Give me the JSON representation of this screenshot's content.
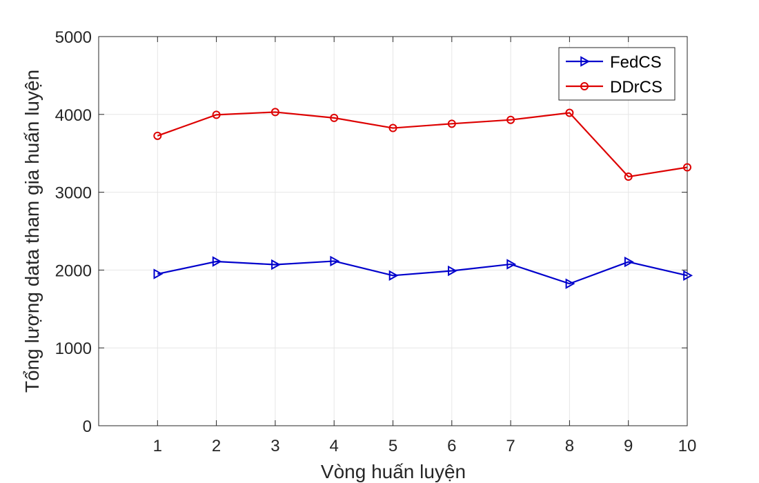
{
  "chart_data": {
    "type": "line",
    "title": "",
    "xlabel": "Vòng huấn luyện",
    "ylabel": "Tổng lượng data tham gia huấn luyện",
    "x": [
      1,
      2,
      3,
      4,
      5,
      6,
      7,
      8,
      9,
      10
    ],
    "xlim": [
      0,
      10
    ],
    "ylim": [
      0,
      5000
    ],
    "xticks": [
      1,
      2,
      3,
      4,
      5,
      6,
      7,
      8,
      9,
      10
    ],
    "yticks": [
      0,
      1000,
      2000,
      3000,
      4000,
      5000
    ],
    "grid": true,
    "legend_position": "top-right",
    "series": [
      {
        "name": "FedCS",
        "color": "#0000cc",
        "marker": "triangle-right",
        "values": [
          1950,
          2110,
          2070,
          2115,
          1930,
          1990,
          2075,
          1825,
          2105,
          1930
        ]
      },
      {
        "name": "DDrCS",
        "color": "#dd0000",
        "marker": "circle",
        "values": [
          3725,
          3995,
          4030,
          3955,
          3825,
          3880,
          3930,
          4020,
          3200,
          3320
        ]
      }
    ]
  }
}
